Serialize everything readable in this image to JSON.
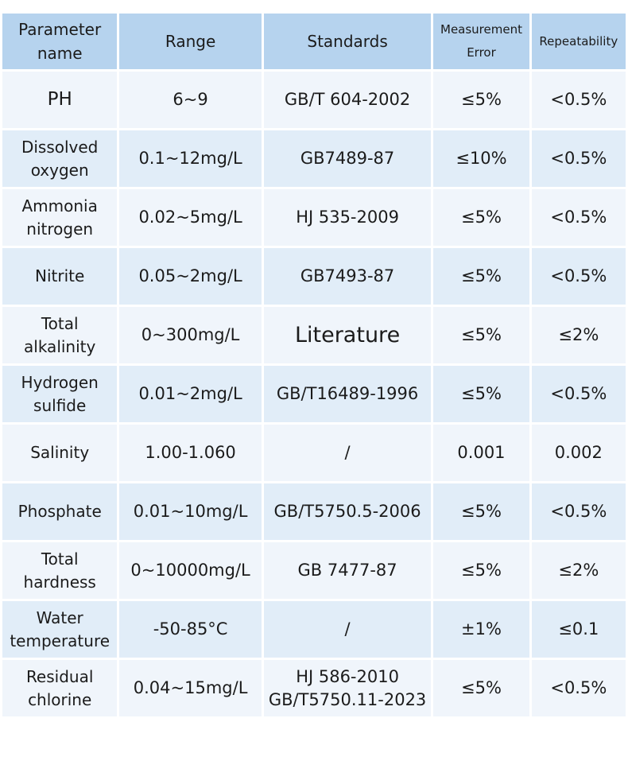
{
  "headers": {
    "parameter": [
      "Parameter",
      "name"
    ],
    "range": "Range",
    "standards": "Standards",
    "measurement_error": [
      "Measurement",
      "Error"
    ],
    "repeatability": "Repeatability"
  },
  "rows": [
    {
      "name": [
        "PH"
      ],
      "range": "6~9",
      "standards": [
        "GB/T 604-2002"
      ],
      "error": "≤5%",
      "repeatability": "<0.5%"
    },
    {
      "name": [
        "Dissolved",
        "oxygen"
      ],
      "range": "0.1~12mg/L",
      "standards": [
        "GB7489-87"
      ],
      "error": "≤10%",
      "repeatability": "<0.5%"
    },
    {
      "name": [
        "Ammonia",
        "nitrogen"
      ],
      "range": "0.02~5mg/L",
      "standards": [
        "HJ 535-2009"
      ],
      "error": "≤5%",
      "repeatability": "<0.5%"
    },
    {
      "name": [
        "Nitrite"
      ],
      "range": "0.05~2mg/L",
      "standards": [
        "GB7493-87"
      ],
      "error": "≤5%",
      "repeatability": "<0.5%"
    },
    {
      "name": [
        "Total",
        "alkalinity"
      ],
      "range": "0~300mg/L",
      "standards": [
        "Literature"
      ],
      "error": "≤5%",
      "repeatability": "≤2%"
    },
    {
      "name": [
        "Hydrogen",
        "sulfide"
      ],
      "range": "0.01~2mg/L",
      "standards": [
        "GB/T16489-1996"
      ],
      "error": "≤5%",
      "repeatability": "<0.5%"
    },
    {
      "name": [
        "Salinity"
      ],
      "range": "1.00-1.060",
      "standards": [
        "/"
      ],
      "error": "0.001",
      "repeatability": "0.002"
    },
    {
      "name": [
        "Phosphate"
      ],
      "range": "0.01~10mg/L",
      "standards": [
        "GB/T5750.5-2006"
      ],
      "error": "≤5%",
      "repeatability": "<0.5%"
    },
    {
      "name": [
        "Total",
        "hardness"
      ],
      "range": "0~10000mg/L",
      "standards": [
        "GB 7477-87"
      ],
      "error": "≤5%",
      "repeatability": "≤2%"
    },
    {
      "name": [
        "Water",
        "temperature"
      ],
      "range": "-50-85°C",
      "standards": [
        "/"
      ],
      "error": "±1%",
      "repeatability": "≤0.1"
    },
    {
      "name": [
        "Residual",
        "chlorine"
      ],
      "range": "0.04~15mg/L",
      "standards": [
        "HJ 586-2010",
        "GB/T5750.11-2023"
      ],
      "error": "≤5%",
      "repeatability": "<0.5%"
    }
  ]
}
